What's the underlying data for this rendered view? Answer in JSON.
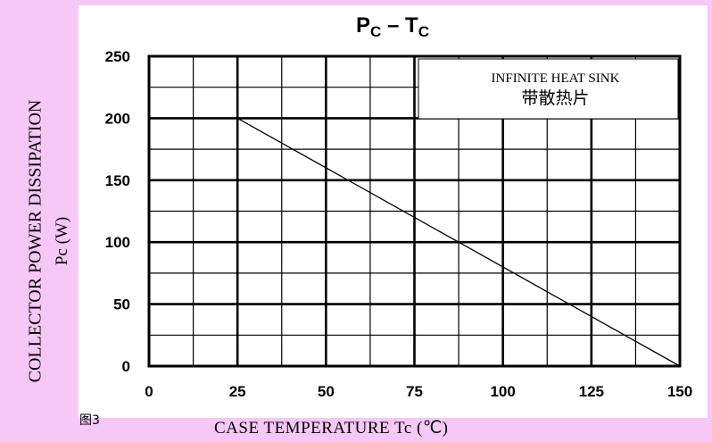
{
  "figure_label": "图3",
  "chart_data": {
    "type": "line",
    "title_main_1": "P",
    "title_sub_1": "C",
    "title_dash": " – ",
    "title_main_2": "T",
    "title_sub_2": "C",
    "xlabel": "CASE  TEMPERATURE  Tc (℃)",
    "ylabel": "COLLECTOR  POWER  DISSIPATION",
    "ylabel_unit": "Pc (W)",
    "xlim": [
      0,
      150
    ],
    "ylim": [
      0,
      250
    ],
    "x_ticks": [
      "0",
      "25",
      "50",
      "75",
      "100",
      "125",
      "150"
    ],
    "y_ticks": [
      "0",
      "50",
      "100",
      "150",
      "200",
      "250"
    ],
    "x_tick_values": [
      0,
      25,
      50,
      75,
      100,
      125,
      150
    ],
    "y_tick_values": [
      0,
      50,
      100,
      150,
      200,
      250
    ],
    "grid": true,
    "series": [
      {
        "x": [
          25,
          150
        ],
        "y": [
          200,
          0
        ]
      }
    ],
    "annotation_line1": "INFINITE HEAT SINK",
    "annotation_line2": "带散热片",
    "colors": {
      "line": "#000000",
      "grid": "#000000",
      "background": "#f7c7f7"
    }
  }
}
